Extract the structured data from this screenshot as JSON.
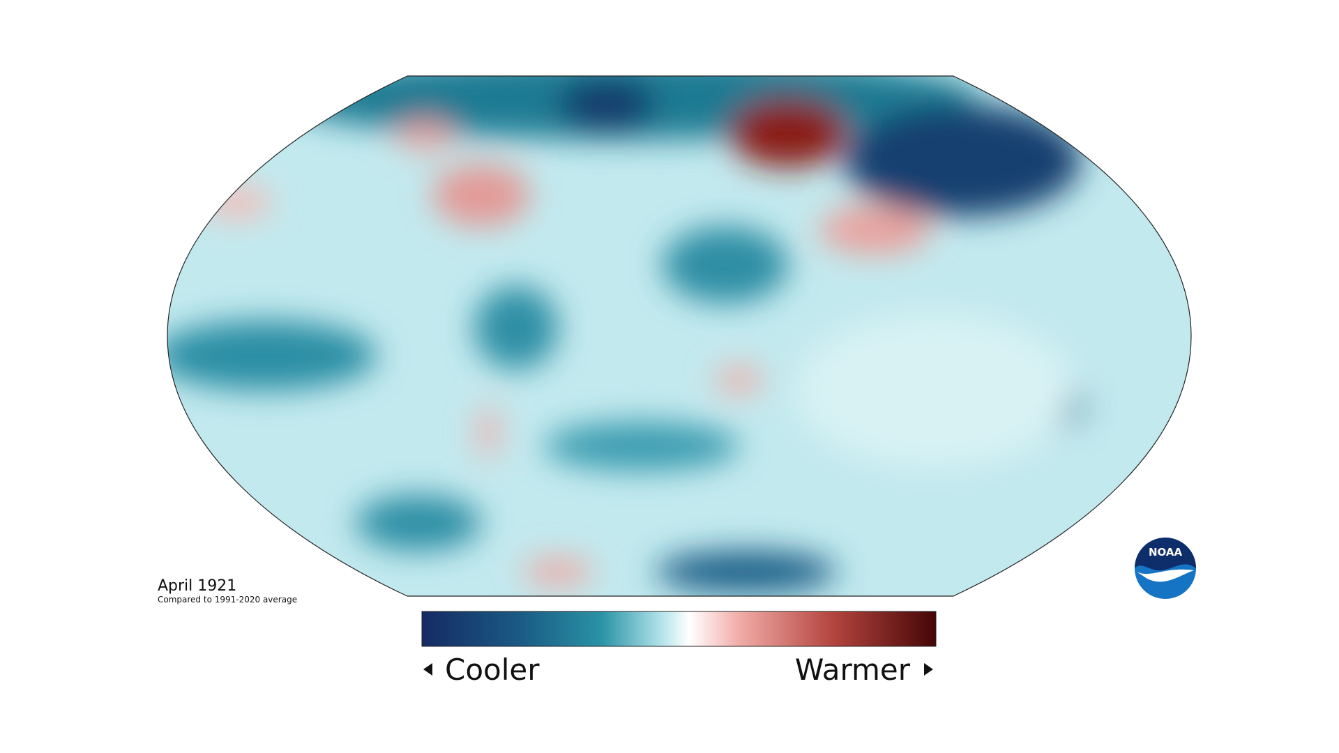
{
  "map": {
    "title": "April 1921",
    "subtitle": "Compared to 1991-2020 average"
  },
  "legend": {
    "low_label": "Cooler",
    "high_label": "Warmer"
  },
  "logo": {
    "text": "NOAA"
  }
}
